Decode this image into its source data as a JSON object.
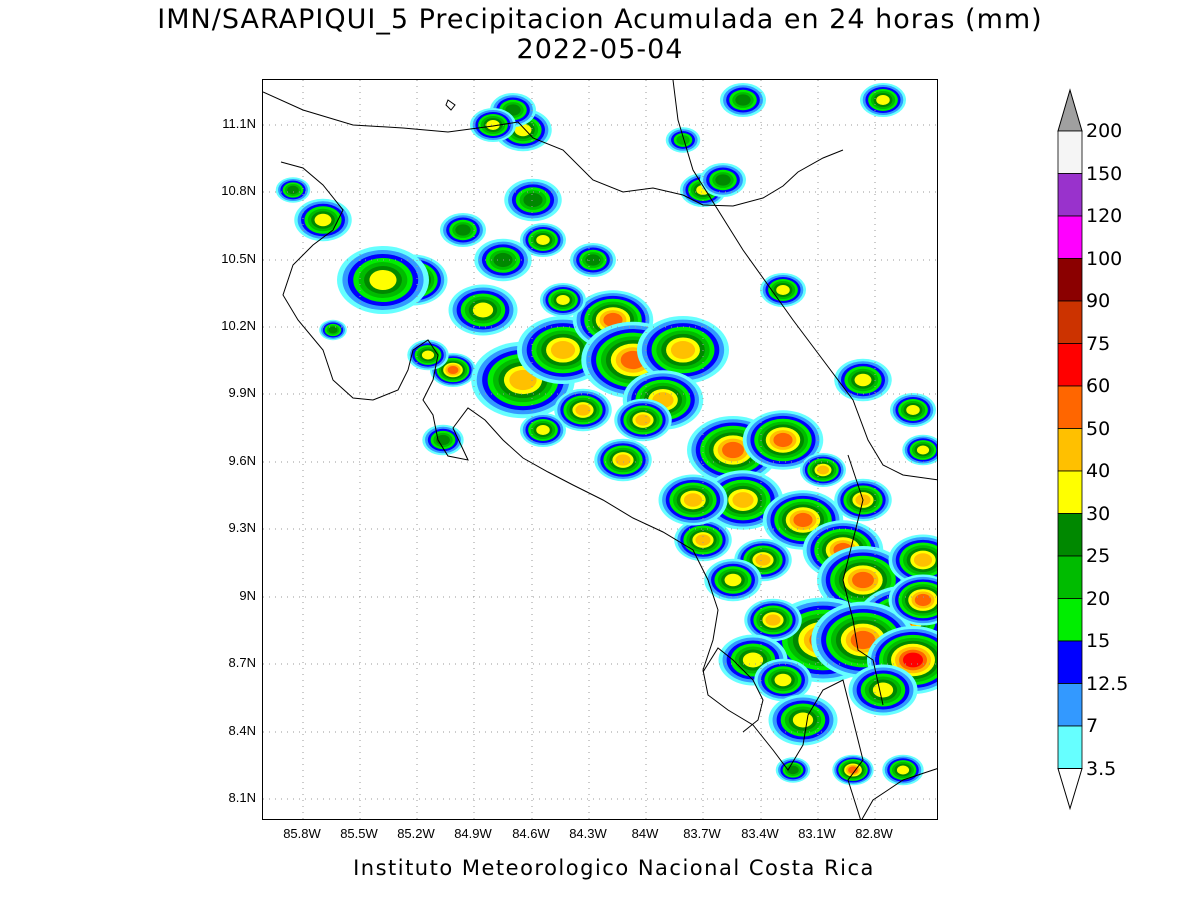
{
  "title": {
    "line1": "IMN/SARAPIQUI_5 Precipitacion Acumulada en 24 horas (mm)",
    "line2": "2022-05-04"
  },
  "map": {
    "lat_labels": [
      "11.1N",
      "10.8N",
      "10.5N",
      "10.2N",
      "9.9N",
      "9.6N",
      "9.3N",
      "9N",
      "8.7N",
      "8.4N",
      "8.1N"
    ],
    "lon_labels": [
      "85.8W",
      "85.5W",
      "85.2W",
      "84.9W",
      "84.6W",
      "84.3W",
      "84W",
      "83.7W",
      "83.4W",
      "83.1W",
      "82.8W"
    ],
    "grid": "dotted"
  },
  "colorbar": {
    "labels": [
      "200",
      "150",
      "120",
      "100",
      "90",
      "75",
      "60",
      "50",
      "40",
      "30",
      "25",
      "20",
      "15",
      "12.5",
      "7",
      "3.5"
    ],
    "colors": [
      "#ffffff",
      "#a0a0a0",
      "#f5f5f5",
      "#9932cc",
      "#ff00ff",
      "#8b0000",
      "#cc3300",
      "#ff0000",
      "#ff6600",
      "#ffc000",
      "#ffff00",
      "#008800",
      "#00bb00",
      "#00ee00",
      "#0000ff",
      "#3399ff",
      "#66ffff"
    ]
  },
  "footer": "Instituto Meteorologico Nacional Costa Rica"
}
